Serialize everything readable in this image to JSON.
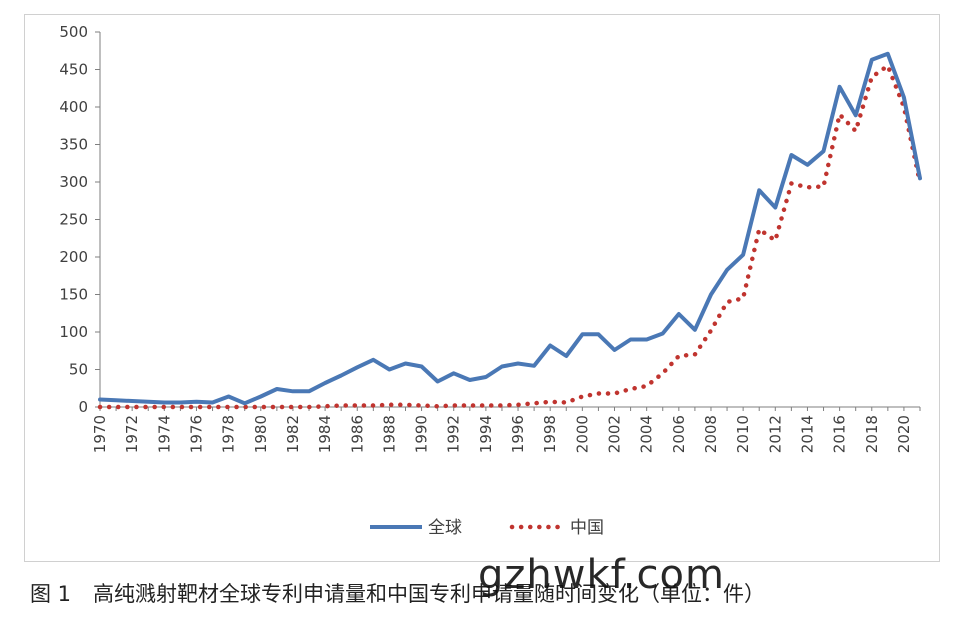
{
  "chart_data": {
    "type": "line",
    "title": "",
    "xlabel": "",
    "ylabel": "",
    "ylim": [
      0,
      500
    ],
    "yticks": [
      0,
      50,
      100,
      150,
      200,
      250,
      300,
      350,
      400,
      450,
      500
    ],
    "x": [
      1970,
      1971,
      1972,
      1973,
      1974,
      1975,
      1976,
      1977,
      1978,
      1979,
      1980,
      1981,
      1982,
      1983,
      1984,
      1985,
      1986,
      1987,
      1988,
      1989,
      1990,
      1991,
      1992,
      1993,
      1994,
      1995,
      1996,
      1997,
      1998,
      1999,
      2000,
      2001,
      2002,
      2003,
      2004,
      2005,
      2006,
      2007,
      2008,
      2009,
      2010,
      2011,
      2012,
      2013,
      2014,
      2015,
      2016,
      2017,
      2018,
      2019,
      2020,
      2021
    ],
    "xtick_labels": [
      "1970",
      "1972",
      "1974",
      "1976",
      "1978",
      "1980",
      "1982",
      "1984",
      "1986",
      "1988",
      "1990",
      "1992",
      "1994",
      "1996",
      "1998",
      "2000",
      "2002",
      "2004",
      "2006",
      "2008",
      "2010",
      "2012",
      "2014",
      "2016",
      "2018",
      "2020"
    ],
    "series": [
      {
        "name": "全球",
        "color": "#4a78b5",
        "style": "solid",
        "values": [
          10,
          9,
          8,
          7,
          6,
          6,
          7,
          6,
          14,
          5,
          14,
          24,
          21,
          21,
          32,
          42,
          53,
          63,
          50,
          58,
          54,
          34,
          45,
          36,
          40,
          54,
          58,
          55,
          82,
          68,
          97,
          97,
          76,
          90,
          90,
          98,
          124,
          103,
          150,
          183,
          203,
          289,
          266,
          336,
          323,
          341,
          427,
          389,
          463,
          471,
          413,
          305
        ]
      },
      {
        "name": "中国",
        "color": "#c0342f",
        "style": "dotted",
        "values": [
          0,
          0,
          0,
          0,
          0,
          0,
          0,
          0,
          0,
          0,
          0,
          0,
          0,
          0,
          1,
          2,
          2,
          2,
          3,
          3,
          2,
          1,
          2,
          2,
          2,
          2,
          3,
          5,
          7,
          6,
          14,
          18,
          18,
          24,
          28,
          45,
          68,
          70,
          102,
          140,
          145,
          237,
          222,
          298,
          293,
          294,
          390,
          368,
          440,
          455,
          400,
          299
        ]
      }
    ],
    "legend_position": "bottom",
    "grid": false
  },
  "caption": {
    "figure_number": "图 1",
    "text": "高纯溅射靶材全球专利申请量和中国专利申请量随时间变化（单位：件）"
  },
  "watermark": "gzhwkf.com"
}
